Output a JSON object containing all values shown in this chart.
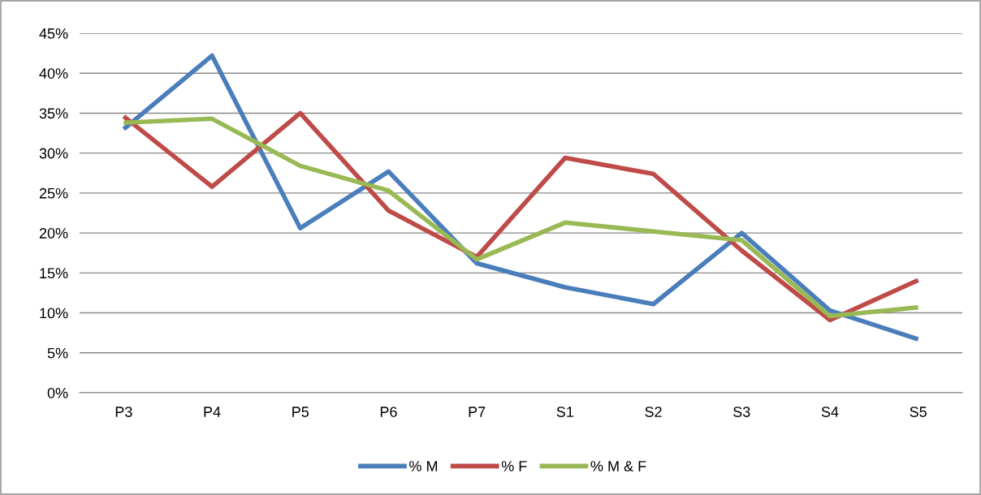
{
  "chart_data": {
    "type": "line",
    "categories": [
      "P3",
      "P4",
      "P5",
      "P6",
      "P7",
      "S1",
      "S2",
      "S3",
      "S4",
      "S5"
    ],
    "series": [
      {
        "name": "% M",
        "color": "#4a7ebb",
        "values": [
          33.0,
          42.2,
          20.6,
          27.7,
          16.2,
          13.2,
          11.1,
          20.0,
          10.3,
          6.7
        ]
      },
      {
        "name": "% F",
        "color": "#be4b48",
        "values": [
          34.6,
          25.8,
          35.0,
          22.8,
          17.0,
          29.4,
          27.4,
          17.8,
          9.1,
          14.1
        ]
      },
      {
        "name": "% M & F",
        "color": "#98b954",
        "values": [
          33.8,
          34.3,
          28.4,
          25.3,
          16.7,
          21.3,
          20.2,
          19.1,
          9.6,
          10.7
        ]
      }
    ],
    "ylim": [
      0,
      45
    ],
    "yticks": [
      {
        "value": 0,
        "label": "0%"
      },
      {
        "value": 5,
        "label": "5%"
      },
      {
        "value": 10,
        "label": "10%"
      },
      {
        "value": 15,
        "label": "15%"
      },
      {
        "value": 20,
        "label": "20%"
      },
      {
        "value": 25,
        "label": "25%"
      },
      {
        "value": 30,
        "label": "30%"
      },
      {
        "value": 35,
        "label": "35%"
      },
      {
        "value": 40,
        "label": "40%"
      },
      {
        "value": 45,
        "label": "45%"
      }
    ],
    "grid": "y",
    "legend": "bottom",
    "marker": "none",
    "line_style": "solid"
  }
}
